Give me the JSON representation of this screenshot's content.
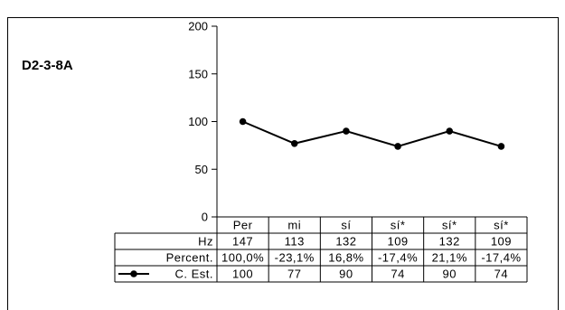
{
  "chart_data": {
    "type": "line",
    "title": "D2-3-8A",
    "categories": [
      "Per",
      "mi",
      "sí",
      "sí*",
      "sí*",
      "sí*"
    ],
    "ylim": [
      0,
      200
    ],
    "yticks": [
      "0",
      "50",
      "100",
      "150",
      "200"
    ],
    "grid": false,
    "series": [
      {
        "name": "C. Est.",
        "values": [
          100,
          77,
          90,
          74,
          90,
          74
        ],
        "color": "#000000"
      }
    ],
    "table": {
      "rows": [
        {
          "label": "Hz",
          "values": [
            "147",
            "113",
            "132",
            "109",
            "132",
            "109"
          ]
        },
        {
          "label": "Percent.",
          "values": [
            "100,0%",
            "-23,1%",
            "16,8%",
            "-17,4%",
            "21,1%",
            "-17,4%"
          ]
        },
        {
          "label": "C. Est.",
          "values": [
            "100",
            "77",
            "90",
            "74",
            "90",
            "74"
          ]
        }
      ]
    }
  }
}
